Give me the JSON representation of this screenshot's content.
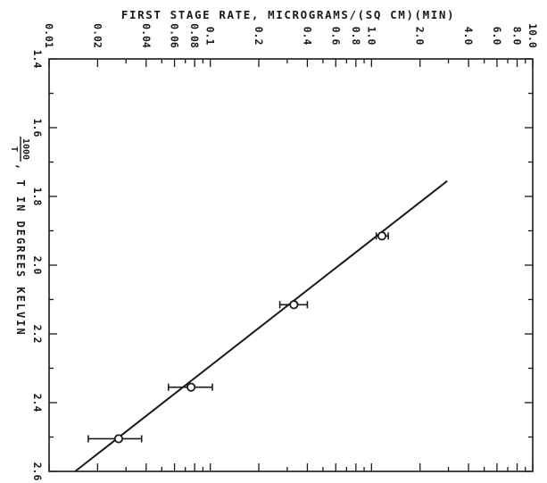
{
  "chart_data": {
    "type": "scatter",
    "title": "FIRST STAGE RATE,  MICROGRAMS/(SQ CM)(MIN)",
    "y_axis": {
      "label_fraction_num": "1000",
      "label_fraction_den": "T",
      "label_rest": ",  T IN DEGREES KELVIN",
      "scale": "linear",
      "range": [
        1.4,
        2.6
      ],
      "ticks": [
        {
          "value": 1.4,
          "label": "1.4"
        },
        {
          "value": 1.6,
          "label": "1.6"
        },
        {
          "value": 1.8,
          "label": "1.8"
        },
        {
          "value": 2.0,
          "label": "2.0"
        },
        {
          "value": 2.2,
          "label": "2.2"
        },
        {
          "value": 2.4,
          "label": "2.4"
        },
        {
          "value": 2.6,
          "label": "2.6"
        }
      ],
      "minor_ticks": [
        1.5,
        1.7,
        1.9,
        2.1,
        2.3,
        2.5
      ]
    },
    "x_axis": {
      "scale": "log",
      "range": [
        0.01,
        10.0
      ],
      "ticks": [
        {
          "value": 0.01,
          "label": "0.01"
        },
        {
          "value": 0.02,
          "label": "0.02"
        },
        {
          "value": 0.04,
          "label": "0.04"
        },
        {
          "value": 0.06,
          "label": "0.06"
        },
        {
          "value": 0.08,
          "label": "0.08"
        },
        {
          "value": 0.1,
          "label": "0.1"
        },
        {
          "value": 0.2,
          "label": "0.2"
        },
        {
          "value": 0.4,
          "label": "0.4"
        },
        {
          "value": 0.6,
          "label": "0.6"
        },
        {
          "value": 0.8,
          "label": "0.8"
        },
        {
          "value": 1.0,
          "label": "1.0"
        },
        {
          "value": 2.0,
          "label": "2.0"
        },
        {
          "value": 4.0,
          "label": "4.0"
        },
        {
          "value": 6.0,
          "label": "6.0"
        },
        {
          "value": 8.0,
          "label": "8.0"
        },
        {
          "value": 10.0,
          "label": "10.0"
        }
      ],
      "minor_ticks": [
        0.03,
        0.05,
        0.07,
        0.09,
        0.3,
        0.5,
        0.7,
        0.9,
        3.0,
        5.0,
        7.0,
        9.0
      ]
    },
    "points": [
      {
        "rate": 1.16,
        "inv_t": 1.915,
        "rate_low": 1.07,
        "rate_high": 1.27
      },
      {
        "rate": 0.33,
        "inv_t": 2.115,
        "rate_low": 0.27,
        "rate_high": 0.4
      },
      {
        "rate": 0.076,
        "inv_t": 2.355,
        "rate_low": 0.055,
        "rate_high": 0.103
      },
      {
        "rate": 0.027,
        "inv_t": 2.505,
        "rate_low": 0.0175,
        "rate_high": 0.0375
      }
    ],
    "fit_line": [
      {
        "rate": 2.95,
        "inv_t": 1.755
      },
      {
        "rate": 0.0145,
        "inv_t": 2.6
      }
    ],
    "grid": false
  }
}
